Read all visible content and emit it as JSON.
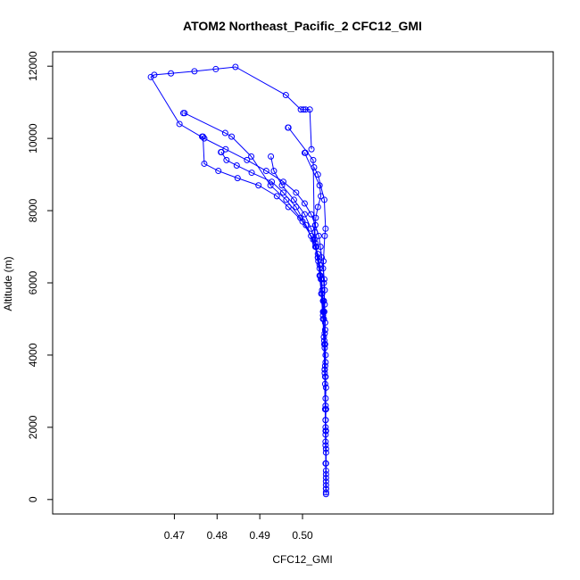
{
  "chart_data": {
    "type": "line",
    "title": "ATOM2 Northeast_Pacific_2 CFC12_GMI",
    "xlabel": "CFC12_GMI",
    "ylabel": "Altitude (m)",
    "xlim": [
      0.4415,
      0.5587
    ],
    "ylim": [
      -400,
      12400
    ],
    "xticks": [
      0.47,
      0.48,
      0.49,
      0.5
    ],
    "xtick_labels": [
      "0.47",
      "0.48",
      "0.49",
      "0.50"
    ],
    "yticks": [
      0,
      2000,
      4000,
      6000,
      8000,
      10000,
      12000
    ],
    "ytick_labels": [
      "0",
      "2000",
      "4000",
      "6000",
      "8000",
      "10000",
      "12000"
    ],
    "grid": false,
    "marker": "open-circle",
    "color": "#0000ff",
    "series": [
      {
        "x": [
          0.5055,
          0.5055,
          0.5055,
          0.5054,
          0.5055,
          0.5054,
          0.5055,
          0.5054,
          0.5055,
          0.5054,
          0.5055,
          0.5054,
          0.5053,
          0.5054,
          0.5053,
          0.5052,
          0.5053,
          0.5051,
          0.505,
          0.5052,
          0.5051,
          0.5048,
          0.5045,
          0.5042,
          0.5038,
          0.503,
          0.502,
          0.5005,
          0.4985,
          0.4955,
          0.4915,
          0.487,
          0.482,
          0.477,
          0.4712,
          0.4645,
          0.4653,
          0.4692,
          0.4747,
          0.4797,
          0.4843,
          0.4961,
          0.4996,
          0.5002,
          0.5007,
          0.5017,
          0.5021
        ],
        "y": [
          150,
          400,
          700,
          1000,
          1300,
          1600,
          1900,
          2200,
          2500,
          2800,
          3100,
          3400,
          3700,
          4000,
          4300,
          4600,
          4900,
          5200,
          5500,
          5800,
          6100,
          6400,
          6700,
          7000,
          7300,
          7600,
          7900,
          8200,
          8500,
          8800,
          9100,
          9400,
          9700,
          10000,
          10400,
          11700,
          11760,
          11800,
          11860,
          11920,
          11980,
          11200,
          10800,
          10800,
          10800,
          10800,
          9700
        ]
      },
      {
        "x": [
          0.5055,
          0.5054,
          0.5053,
          0.5052,
          0.505,
          0.5048,
          0.5046,
          0.5043,
          0.504,
          0.5036,
          0.5032,
          0.5028,
          0.5025,
          0.4967,
          0.4966
        ],
        "y": [
          500,
          1500,
          2500,
          3500,
          4500,
          5200,
          5700,
          6100,
          6400,
          6700,
          7000,
          7200,
          9400,
          10300,
          10300
        ]
      },
      {
        "x": [
          0.5055,
          0.5054,
          0.5052,
          0.505,
          0.5045,
          0.5036,
          0.502,
          0.4995,
          0.4962,
          0.4925,
          0.488,
          0.4834,
          0.4819,
          0.4724,
          0.4721
        ],
        "y": [
          300,
          1800,
          3600,
          5000,
          6100,
          6800,
          7300,
          7800,
          8300,
          8700,
          9500,
          10050,
          10150,
          10700,
          10700
        ]
      },
      {
        "x": [
          0.5055,
          0.5054,
          0.5052,
          0.5048,
          0.504,
          0.5025,
          0.5,
          0.4967,
          0.494,
          0.4897,
          0.4848,
          0.4803,
          0.477,
          0.4767,
          0.4765
        ],
        "y": [
          200,
          2500,
          4200,
          5500,
          6500,
          7200,
          7700,
          8100,
          8400,
          8700,
          8900,
          9100,
          9300,
          10050,
          10050
        ]
      },
      {
        "x": [
          0.5055,
          0.5054,
          0.5052,
          0.5048,
          0.5041,
          0.503,
          0.5008,
          0.4985,
          0.4955,
          0.4928,
          0.4881,
          0.4846,
          0.4822,
          0.481,
          0.4809
        ],
        "y": [
          800,
          2000,
          3600,
          5000,
          6200,
          7000,
          7600,
          8100,
          8500,
          8800,
          9050,
          9250,
          9400,
          9620,
          9620
        ]
      },
      {
        "x": [
          0.5055,
          0.5054,
          0.5053,
          0.5051,
          0.5049,
          0.5046,
          0.5042,
          0.5037,
          0.5032,
          0.5029,
          0.5031,
          0.5036,
          0.5043,
          0.504,
          0.5005,
          0.5007
        ],
        "y": [
          1000,
          2200,
          3400,
          4400,
          5200,
          5800,
          6200,
          6600,
          7000,
          7400,
          7800,
          8100,
          8400,
          8700,
          9600,
          9600
        ]
      },
      {
        "x": [
          0.5055,
          0.5054,
          0.5053,
          0.5051,
          0.5048,
          0.5044,
          0.504,
          0.5036,
          0.503,
          0.502,
          0.5005,
          0.498,
          0.4952,
          0.4933,
          0.4926
        ],
        "y": [
          600,
          1900,
          3200,
          4300,
          5100,
          5700,
          6200,
          6700,
          7100,
          7500,
          7900,
          8300,
          8700,
          9100,
          9500
        ]
      },
      {
        "x": [
          0.5055,
          0.5055,
          0.5054,
          0.5054,
          0.5053,
          0.5052,
          0.505,
          0.5049,
          0.5052,
          0.5054,
          0.5051,
          0.5036,
          0.5027
        ],
        "y": [
          300,
          1400,
          2600,
          3800,
          4700,
          5400,
          6000,
          6600,
          7300,
          7500,
          8300,
          9000,
          9200
        ]
      }
    ]
  }
}
